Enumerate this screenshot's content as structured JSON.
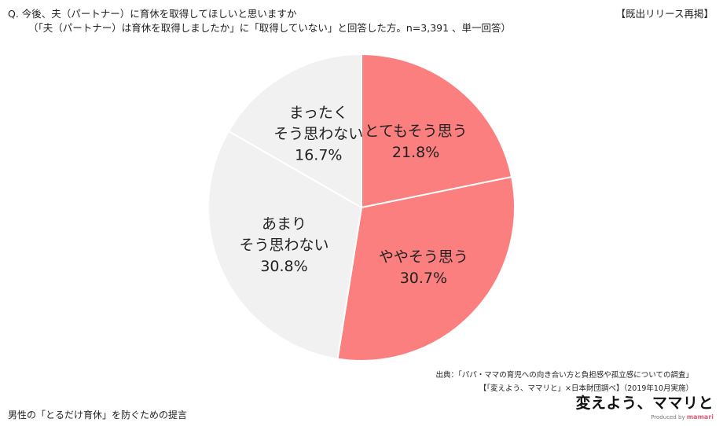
{
  "header": {
    "question": "Q.  今後、夫（パートナー）に育休を取得してほしいと思いますか",
    "subquestion": "（「夫（パートナー）は育休を取得しましたか」に「取得していない」と回答した方。n=3,391 、単一回答）",
    "badge": "【既出リリース再掲】"
  },
  "source": {
    "line1": "出典：「パパ・ママの育児への向き合い方と負担感や孤立感についての調査」",
    "line2": "【「変えよう、ママリと」×日本財団調べ】（2019年10月実施）"
  },
  "footer": {
    "text": "男性の「とるだけ育休」を防ぐための提言"
  },
  "logo": {
    "main": "変えよう、ママリと",
    "produced": "Produced by",
    "brand": "mamari"
  },
  "chart_data": {
    "type": "pie",
    "start": "12 o'clock",
    "direction": "clockwise",
    "slices": [
      {
        "label_lines": [
          "とてもそう思う"
        ],
        "value": 21.8,
        "value_label": "21.8%",
        "color": "#fb7f7f"
      },
      {
        "label_lines": [
          "ややそう思う"
        ],
        "value": 30.7,
        "value_label": "30.7%",
        "color": "#fb7f7f"
      },
      {
        "label_lines": [
          "あまり",
          "そう思わない"
        ],
        "value": 30.8,
        "value_label": "30.8%",
        "color": "#f1f1f1"
      },
      {
        "label_lines": [
          "まったく",
          "そう思わない"
        ],
        "value": 16.7,
        "value_label": "16.7%",
        "color": "#f1f1f1"
      }
    ]
  }
}
